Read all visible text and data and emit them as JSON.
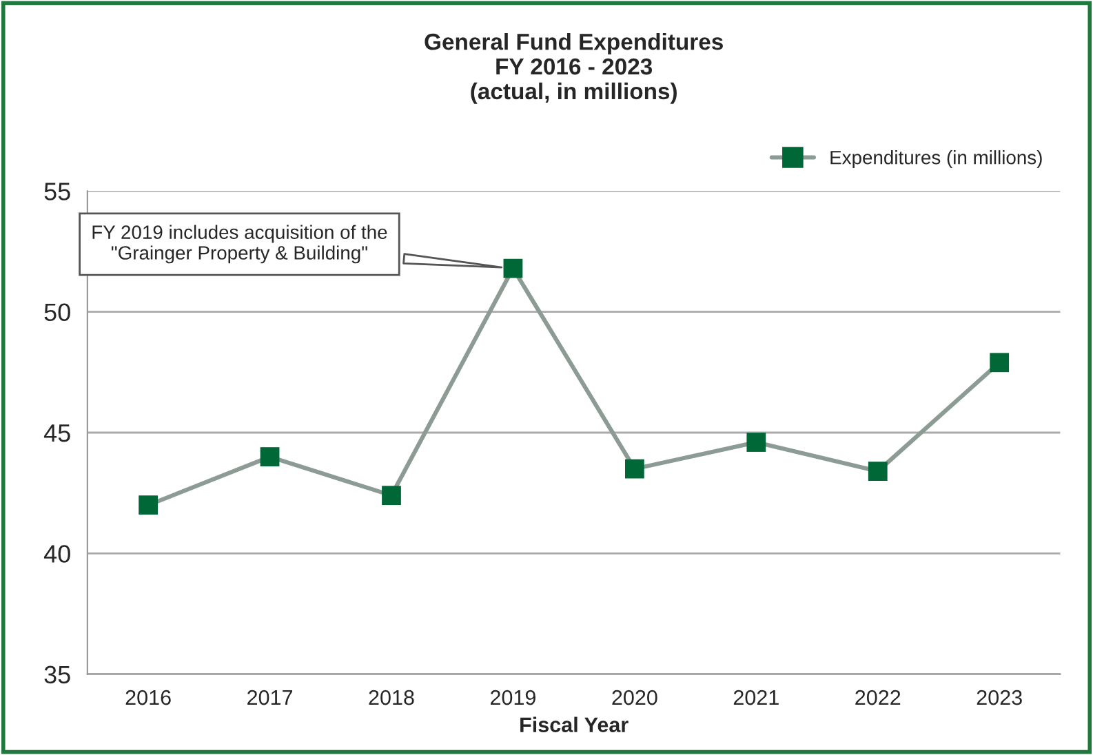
{
  "chart_data": {
    "type": "line",
    "title": "General Fund Expenditures\nFY 2016 - 2023\n(actual, in millions)",
    "xlabel": "Fiscal Year",
    "categories": [
      "2016",
      "2017",
      "2018",
      "2019",
      "2020",
      "2021",
      "2022",
      "2023"
    ],
    "series": [
      {
        "name": "Expenditures (in millions)",
        "color": "#8c9c94",
        "colors": [
          "#006837",
          "#006837",
          "#006837",
          "#006837",
          "#006837",
          "#006837",
          "#006837",
          "#006837"
        ],
        "values": [
          42.0,
          44.0,
          42.4,
          51.8,
          43.5,
          44.6,
          43.4,
          47.9
        ]
      }
    ],
    "ylim": [
      35,
      55
    ],
    "yticks": [
      35,
      40,
      45,
      50,
      55
    ],
    "grid": "y",
    "legend": "top right",
    "marker": "square",
    "line_style": "solid",
    "annotations": [
      {
        "text": "FY 2019 includes acquisition of the\n\"Grainger Property & Building\"",
        "x": "2019",
        "y": 51.8
      }
    ]
  }
}
